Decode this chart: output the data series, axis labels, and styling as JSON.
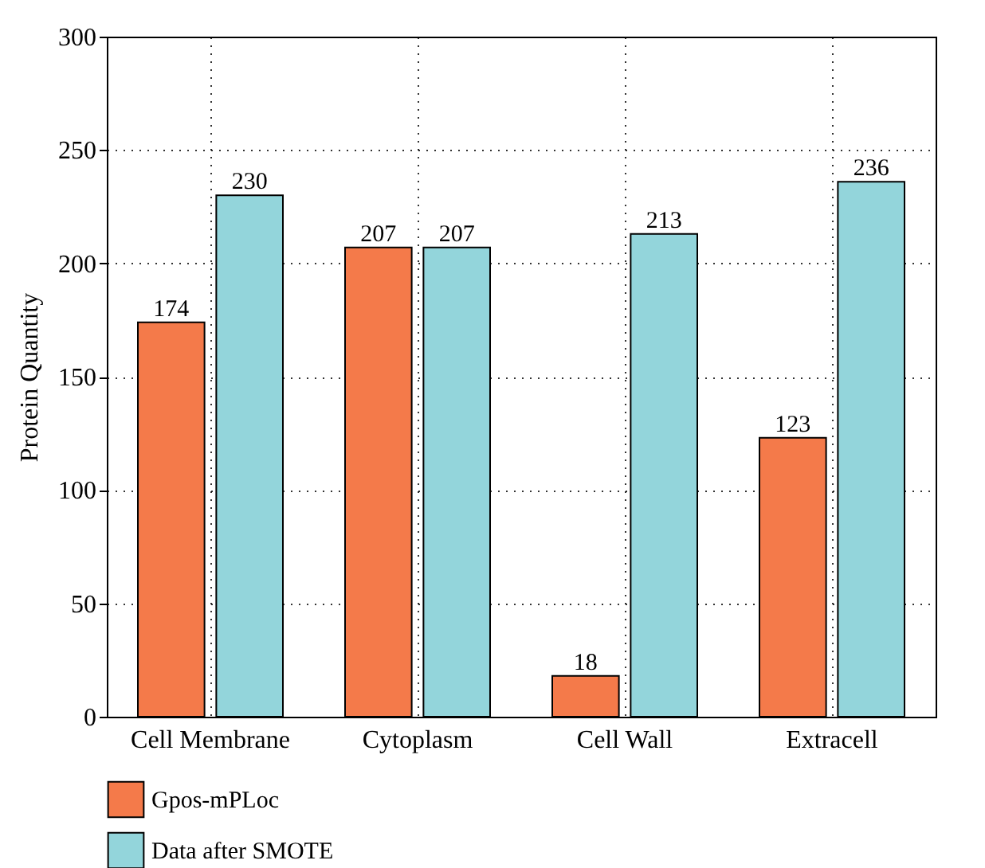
{
  "chart_data": {
    "type": "bar",
    "ylabel": "Protein Quantity",
    "categories": [
      "Cell Membrane",
      "Cytoplasm",
      "Cell Wall",
      "Extracell"
    ],
    "series": [
      {
        "name": "Gpos-mPLoc",
        "color": "#f47a4a",
        "values": [
          174,
          207,
          18,
          123
        ]
      },
      {
        "name": "Data after SMOTE",
        "color": "#93d5db",
        "values": [
          230,
          207,
          213,
          236
        ]
      }
    ],
    "ylim": [
      0,
      300
    ],
    "yticks": [
      0,
      50,
      100,
      150,
      200,
      250,
      300
    ],
    "grid": true,
    "legend": "bottom",
    "data_labels": true
  }
}
